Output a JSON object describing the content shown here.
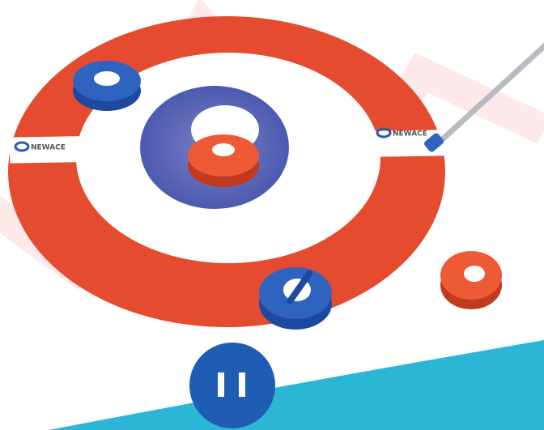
{
  "mat": {
    "logo_left": "NEWACE",
    "logo_right": "NEWACE"
  }
}
